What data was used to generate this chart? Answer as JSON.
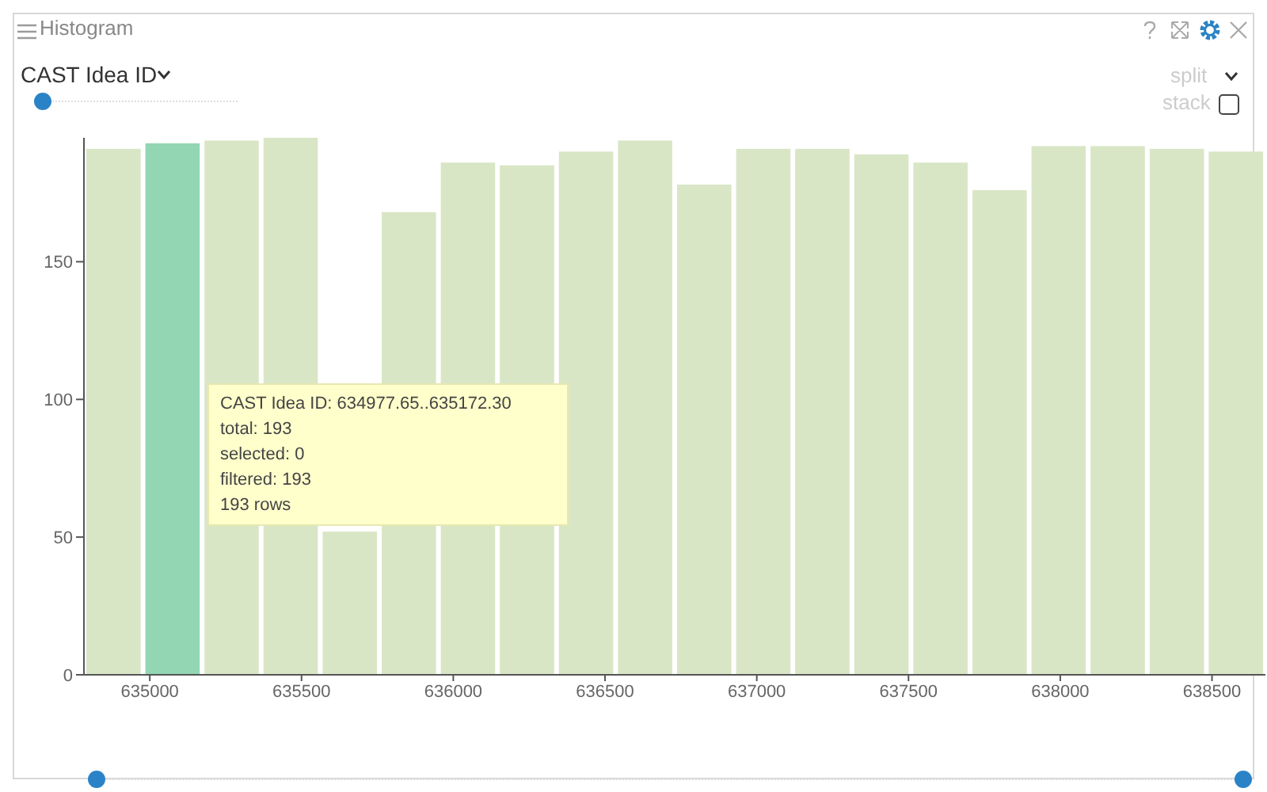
{
  "chart_data": {
    "type": "histogram",
    "title": "Histogram",
    "xlabel": "CAST Idea ID",
    "bins": [
      634783.0,
      634977.65,
      635172.3,
      635366.95,
      635561.6,
      635756.25,
      635950.9,
      636145.55,
      636340.2,
      636534.85,
      636729.5,
      636924.15,
      637118.8,
      637313.45,
      637508.1,
      637702.75,
      637897.4,
      638092.05,
      638286.7,
      638481.35,
      638676.0
    ],
    "values": [
      191,
      193,
      194,
      195,
      52,
      168,
      186,
      185,
      190,
      194,
      178,
      191,
      191,
      189,
      186,
      176,
      192,
      192,
      191,
      190
    ],
    "colors": [
      "#d9e6c6",
      "#93d6b4",
      "#d9e6c6",
      "#d9e6c6",
      "#d9e6c6",
      "#d9e6c6",
      "#d9e6c6",
      "#d9e6c6",
      "#d9e6c6",
      "#d9e6c6",
      "#d9e6c6",
      "#d9e6c6",
      "#d9e6c6",
      "#d9e6c6",
      "#d9e6c6",
      "#d9e6c6",
      "#d9e6c6",
      "#d9e6c6",
      "#d9e6c6",
      "#d9e6c6"
    ],
    "xlim": [
      634783,
      638676
    ],
    "xticks": [
      635000,
      635500,
      636000,
      636500,
      637000,
      637500,
      638000,
      638500
    ],
    "ylim": [
      0,
      195
    ],
    "yticks": [
      0,
      50,
      100,
      150
    ],
    "grid": false,
    "legend": false,
    "annotations": [
      "split",
      "stack",
      "CAST Idea ID: 634977.65..635172.30",
      "total: 193",
      "selected: 0",
      "filtered: 193",
      "193 rows"
    ]
  }
}
